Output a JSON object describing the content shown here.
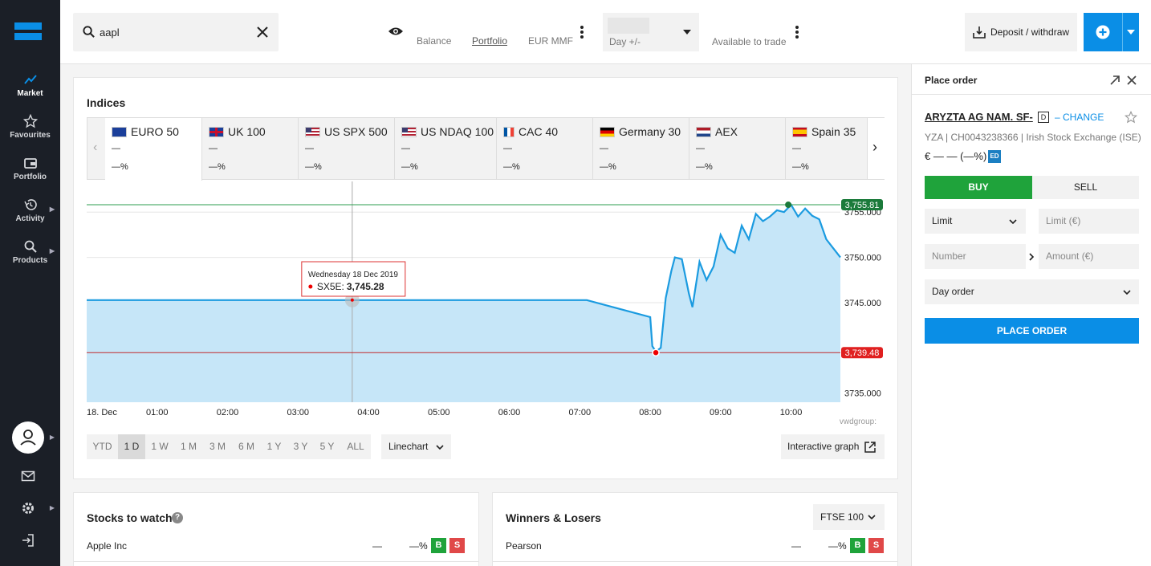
{
  "nav": {
    "items": [
      {
        "label": "Market"
      },
      {
        "label": "Favourites"
      },
      {
        "label": "Portfolio"
      },
      {
        "label": "Activity"
      },
      {
        "label": "Products"
      }
    ]
  },
  "topbar": {
    "search_value": "aapl",
    "balance_label": "Balance",
    "portfolio_label": "Portfolio",
    "eur_mmf_label": "EUR MMF",
    "day_label": "Day +/-",
    "available_label": "Available to trade",
    "deposit_label": "Deposit / withdraw"
  },
  "indices": {
    "title": "Indices",
    "tabs": [
      {
        "name": "EURO 50",
        "value": "—",
        "pct": "—%",
        "flag": "eu"
      },
      {
        "name": "UK 100",
        "value": "—",
        "pct": "—%",
        "flag": "uk"
      },
      {
        "name": "US SPX 500",
        "value": "—",
        "pct": "—%",
        "flag": "us"
      },
      {
        "name": "US NDAQ 100",
        "value": "—",
        "pct": "—%",
        "flag": "us"
      },
      {
        "name": "CAC 40",
        "value": "—",
        "pct": "—%",
        "flag": "fr"
      },
      {
        "name": "Germany 30",
        "value": "—",
        "pct": "—%",
        "flag": "de"
      },
      {
        "name": "AEX",
        "value": "—",
        "pct": "—%",
        "flag": "nl"
      },
      {
        "name": "Spain 35",
        "value": "—",
        "pct": "—%",
        "flag": "es"
      }
    ],
    "ranges": [
      "YTD",
      "1 D",
      "1 W",
      "1 M",
      "3 M",
      "6 M",
      "1 Y",
      "3 Y",
      "5 Y",
      "ALL"
    ],
    "active_range": "1 D",
    "chart_type_label": "Linechart",
    "interactive_label": "Interactive graph",
    "source_label": "vwdgroup:"
  },
  "chart_data": {
    "type": "area",
    "series": [
      {
        "name": "SX5E"
      }
    ],
    "x_ticks": [
      "18. Dec",
      "01:00",
      "02:00",
      "03:00",
      "04:00",
      "05:00",
      "06:00",
      "07:00",
      "08:00",
      "09:00",
      "10:00"
    ],
    "y_ticks": [
      "3735.000",
      "3745.000",
      "3750.000",
      "3755.000"
    ],
    "ylim": [
      3734,
      3757.5
    ],
    "x": [
      0,
      7.1,
      8.0,
      8.03,
      8.08,
      8.15,
      8.22,
      8.3,
      8.35,
      8.45,
      8.55,
      8.6,
      8.7,
      8.8,
      8.9,
      9.0,
      9.1,
      9.2,
      9.3,
      9.4,
      9.5,
      9.6,
      9.7,
      9.8,
      9.9,
      10.0,
      10.1,
      10.2,
      10.3,
      10.4,
      10.5,
      10.6,
      10.7
    ],
    "y": [
      3745.28,
      3745.28,
      3743.4,
      3740.2,
      3739.6,
      3740.0,
      3745.5,
      3748.5,
      3750.0,
      3749.8,
      3746.0,
      3744.5,
      3749.5,
      3747.5,
      3749.0,
      3752.5,
      3751.0,
      3750.5,
      3753.5,
      3752.0,
      3754.8,
      3754.0,
      3754.5,
      3755.2,
      3755.0,
      3755.81,
      3754.5,
      3755.4,
      3754.6,
      3754.2,
      3752.0,
      3751.0,
      3750.0
    ],
    "high": {
      "value": 3755.81,
      "label": "3,755.81",
      "x": 9.96
    },
    "low": {
      "value": 3739.48,
      "label": "3,739.48",
      "x": 8.08
    },
    "tooltip": {
      "date": "Wednesday 18 Dec 2019",
      "series": "SX5E",
      "value": "3,745.28",
      "x": 3.77
    }
  },
  "colors": {
    "accent": "#0a8ee6",
    "buy": "#1fa33b",
    "sell": "#e04848",
    "line": "#1b9be0",
    "fill": "#c6e6f8"
  },
  "stocks": {
    "title": "Stocks to watch",
    "rows": [
      {
        "name": "Apple Inc",
        "value": "—",
        "pct": "—%",
        "buy": "B",
        "sell": "S"
      }
    ]
  },
  "winners": {
    "title": "Winners & Losers",
    "select": "FTSE 100",
    "rows": [
      {
        "name": "Pearson",
        "value": "—",
        "pct": "—%",
        "buy": "B",
        "sell": "S"
      }
    ]
  },
  "order": {
    "title": "Place order",
    "instrument": "ARYZTA AG NAM. SF-",
    "badge": "D",
    "change_label": "– CHANGE",
    "meta": "YZA | CH0043238366 | Irish Stock Exchange (ISE)",
    "price": "€ — — (—%)",
    "exchange_badge": "ED",
    "buy_label": "BUY",
    "sell_label": "SELL",
    "order_type": "Limit",
    "limit_placeholder": "Limit (€)",
    "number_placeholder": "Number",
    "amount_placeholder": "Amount (€)",
    "validity": "Day order",
    "submit_label": "PLACE ORDER"
  }
}
